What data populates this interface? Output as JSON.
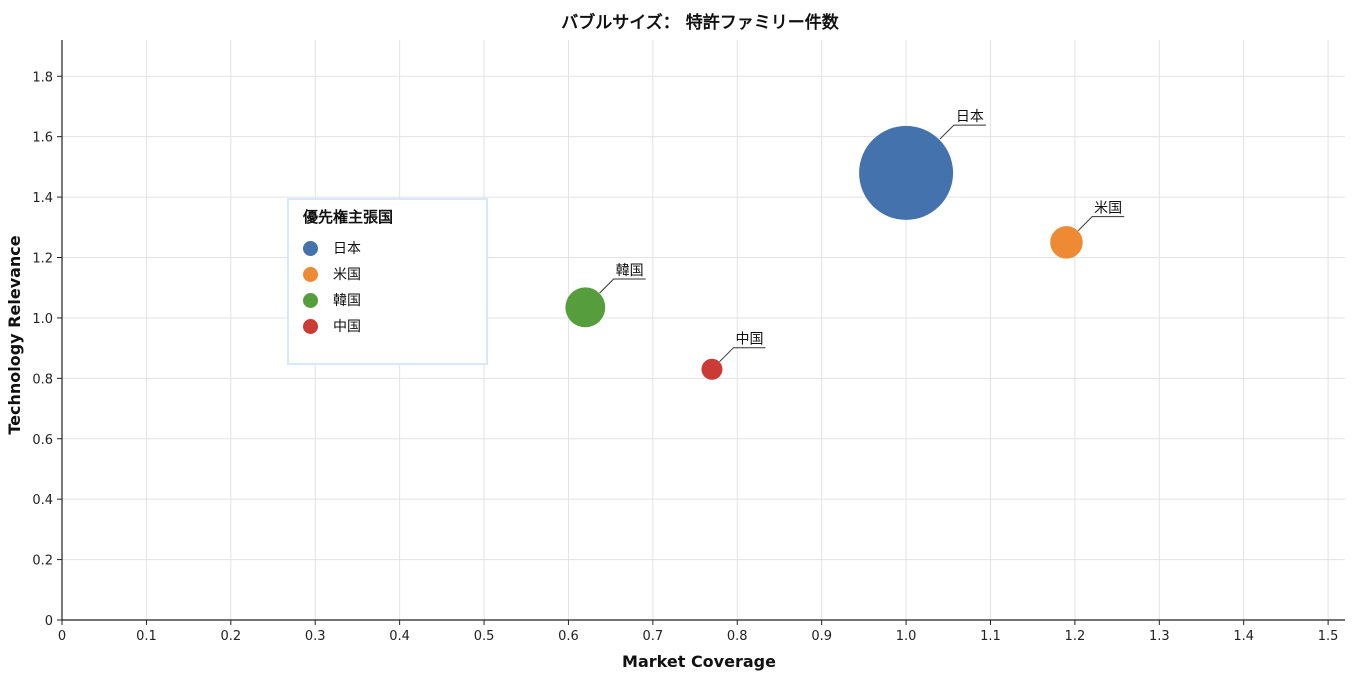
{
  "chart_data": {
    "type": "scatter",
    "title": "バブルサイズ： 特許ファミリー件数",
    "xlabel": "Market Coverage",
    "ylabel": "Technology Relevance",
    "xlim": [
      0,
      1.52
    ],
    "ylim": [
      0,
      1.92
    ],
    "x_ticks": [
      "0",
      "0.1",
      "0.2",
      "0.3",
      "0.4",
      "0.5",
      "0.6",
      "0.7",
      "0.8",
      "0.9",
      "1.0",
      "1.1",
      "1.2",
      "1.3",
      "1.4",
      "1.5"
    ],
    "y_ticks": [
      "0",
      "0.2",
      "0.4",
      "0.6",
      "0.8",
      "1.0",
      "1.2",
      "1.4",
      "1.6",
      "1.8"
    ],
    "grid": true,
    "legend_title": "優先権主張国",
    "legend_position": "center-left",
    "series": [
      {
        "name": "日本",
        "x": 1.0,
        "y": 1.48,
        "size": 100,
        "color": "#4472ac"
      },
      {
        "name": "米国",
        "x": 1.19,
        "y": 1.25,
        "size": 12,
        "color": "#ef8a34"
      },
      {
        "name": "韓国",
        "x": 0.62,
        "y": 1.035,
        "size": 18,
        "color": "#569e3d"
      },
      {
        "name": "中国",
        "x": 0.77,
        "y": 0.83,
        "size": 5,
        "color": "#c93b34"
      }
    ]
  }
}
